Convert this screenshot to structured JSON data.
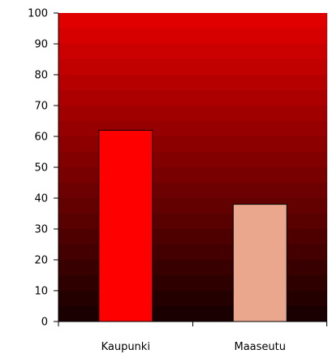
{
  "chart_data": {
    "type": "bar",
    "categories": [
      "Kaupunki",
      "Maaseutu"
    ],
    "values": [
      62,
      38
    ],
    "bar_colors": [
      "#ff0000",
      "#eba68e"
    ],
    "ylim": [
      0,
      100
    ],
    "yticks": [
      0,
      10,
      20,
      30,
      40,
      50,
      60,
      70,
      80,
      90,
      100
    ],
    "ytick_labels": [
      "0",
      "10",
      "20",
      "30",
      "40",
      "50",
      "60",
      "70",
      "80",
      "90",
      "100"
    ],
    "grid": false,
    "legend": "none",
    "plot_background": "vertical gradient, dark red (#1a0000) at bottom to bright red (#e00000) at top"
  }
}
